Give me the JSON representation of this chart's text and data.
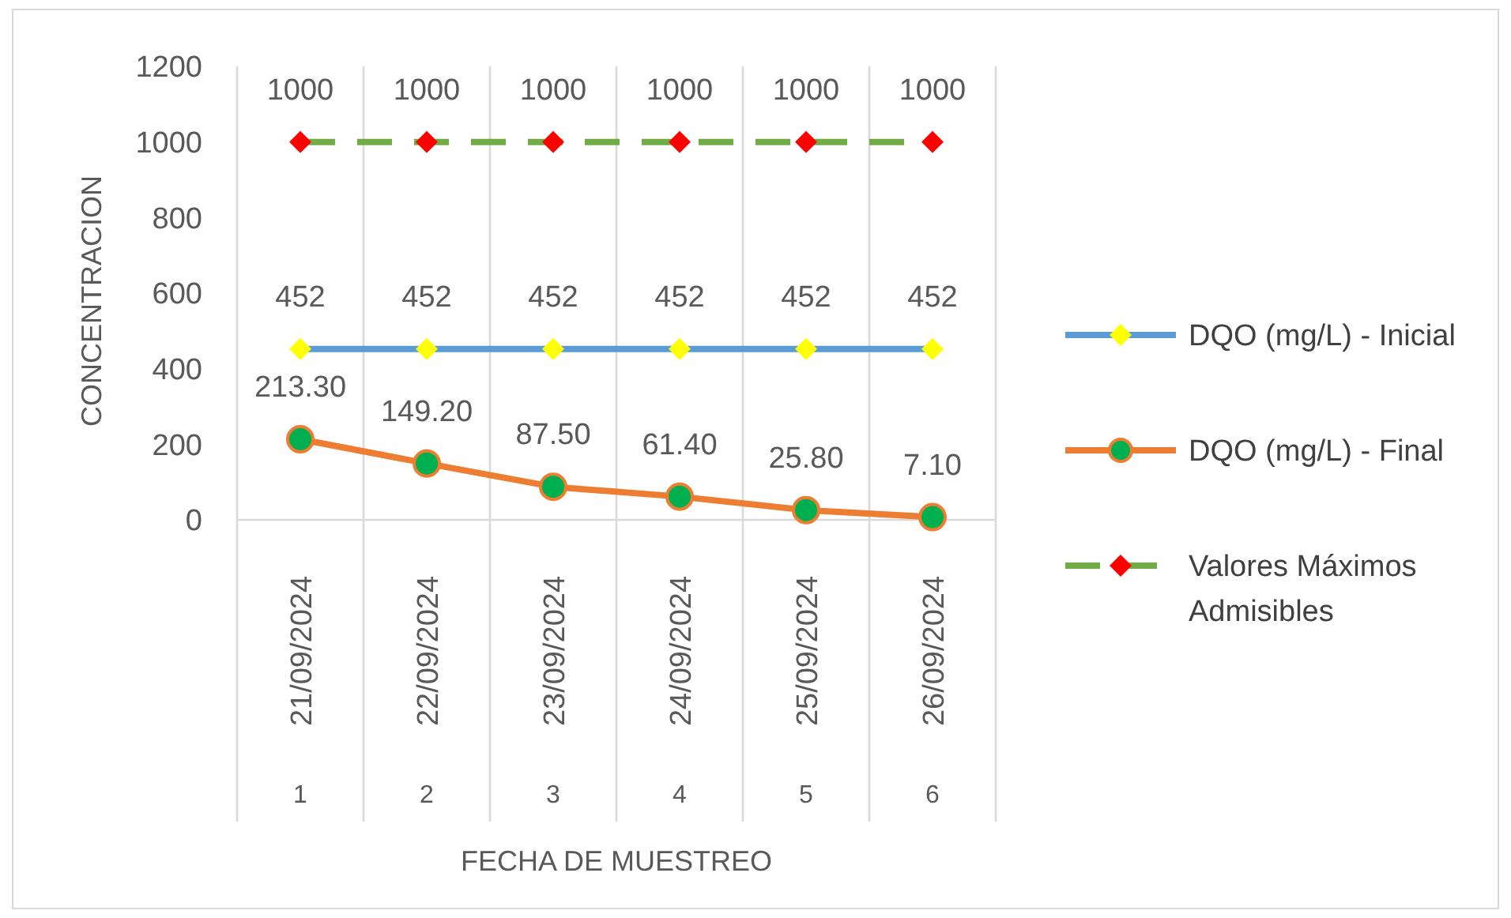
{
  "chart_data": {
    "type": "line",
    "xlabel": "FECHA DE MUESTREO",
    "ylabel": "CONCENTRACION",
    "categories": [
      "21/09/2024",
      "22/09/2024",
      "23/09/2024",
      "24/09/2024",
      "25/09/2024",
      "26/09/2024"
    ],
    "series": [
      {
        "name": "DQO (mg/L) - Inicial",
        "color": "#5b9bd5",
        "colors": [
          "#ffff00",
          "#ffff00",
          "#ffff00",
          "#ffff00",
          "#ffff00",
          "#ffff00"
        ],
        "marker": "diamond",
        "line_style": "solid",
        "values": [
          452,
          452,
          452,
          452,
          452,
          452
        ],
        "value_labels": [
          "452",
          "452",
          "452",
          "452",
          "452",
          "452"
        ]
      },
      {
        "name": "DQO (mg/L) - Final",
        "color": "#ed7d31",
        "colors": [
          "#00b050",
          "#00b050",
          "#00b050",
          "#00b050",
          "#00b050",
          "#00b050"
        ],
        "marker": "circle",
        "line_style": "solid",
        "values": [
          213.3,
          149.2,
          87.5,
          61.4,
          25.8,
          7.1
        ],
        "value_labels": [
          "213.30",
          "149.20",
          "87.50",
          "61.40",
          "25.80",
          "7.10"
        ]
      },
      {
        "name": "Valores Máximos Admisibles",
        "color": "#70ad47",
        "colors": [
          "#ff0000",
          "#ff0000",
          "#ff0000",
          "#ff0000",
          "#ff0000",
          "#ff0000"
        ],
        "marker": "diamond",
        "line_style": "dashed",
        "values": [
          1000,
          1000,
          1000,
          1000,
          1000,
          1000
        ],
        "value_labels": [
          "1000",
          "1000",
          "1000",
          "1000",
          "1000",
          "1000"
        ]
      }
    ],
    "annotations": [
      "1",
      "2",
      "3",
      "4",
      "5",
      "6"
    ],
    "ylim": [
      0,
      1200
    ],
    "yticks": [
      0,
      200,
      400,
      600,
      800,
      1000,
      1200
    ],
    "grid": "x",
    "legend": "right"
  }
}
